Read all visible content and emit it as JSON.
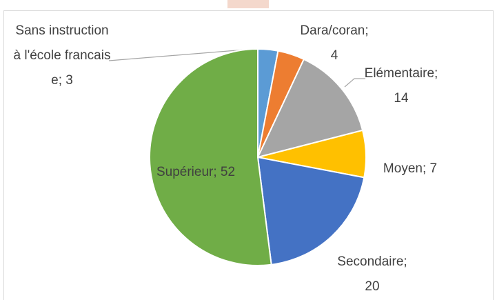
{
  "chart_data": {
    "type": "pie",
    "values": [
      3,
      4,
      14,
      7,
      20,
      52
    ],
    "value_labels": [
      "Sans instruction à l'école francaise; 3",
      "Dara/coran; 4",
      "Elémentaire; 14",
      "Moyen; 7",
      "Secondaire; 20",
      "Supérieur; 52"
    ],
    "colors": [
      "#5b9bd5",
      "#ed7d31",
      "#a5a5a5",
      "#ffc000",
      "#4472c4",
      "#70ad47"
    ]
  }
}
